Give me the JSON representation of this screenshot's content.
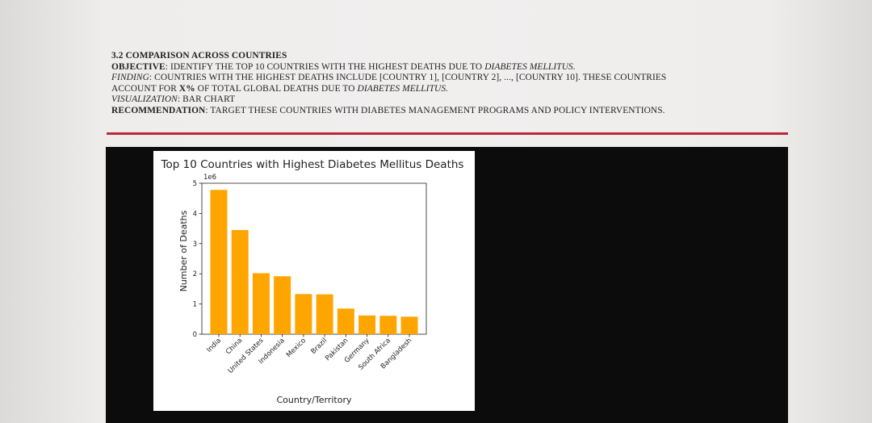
{
  "section": {
    "heading": "3.2 COMPARISON ACROSS COUNTRIES",
    "objective_label": "OBJECTIVE",
    "objective_text": ": IDENTIFY THE TOP 10 COUNTRIES WITH THE HIGHEST DEATHS DUE TO ",
    "objective_em": "DIABETES MELLITUS.",
    "finding_label": "FINDING",
    "finding_text_1": ": COUNTRIES WITH THE HIGHEST DEATHS INCLUDE [COUNTRY 1], [COUNTRY 2], ..., [COUNTRY 10]. THESE COUNTRIES",
    "finding_text_2a": "ACCOUNT FOR ",
    "finding_x": "X%",
    "finding_text_2b": " OF TOTAL GLOBAL DEATHS DUE TO ",
    "finding_em": "DIABETES MELLITUS.",
    "visualization_label": "VISUALIZATION",
    "visualization_text": ": BAR CHART",
    "recommendation_label": "RECOMMENDATION",
    "recommendation_text": ": TARGET THESE COUNTRIES WITH DIABETES MANAGEMENT PROGRAMS AND POLICY INTERVENTIONS."
  },
  "colors": {
    "bar": "#FFA500",
    "rule": "#b8293a",
    "panel": "#0c0c0c"
  },
  "chart_data": {
    "type": "bar",
    "title": "Top 10 Countries with Highest Diabetes Mellitus Deaths",
    "xlabel": "Country/Territory",
    "ylabel": "Number of Deaths",
    "scale_label": "1e6",
    "categories": [
      "India",
      "China",
      "United States",
      "Indonesia",
      "Mexico",
      "Brazil",
      "Pakistan",
      "Germany",
      "South Africa",
      "Bangladesh"
    ],
    "values": [
      4780000,
      3450000,
      2020000,
      1920000,
      1330000,
      1320000,
      850000,
      620000,
      610000,
      580000
    ],
    "ylim": [
      0,
      5000000
    ],
    "yticks": [
      0,
      1,
      2,
      3,
      4,
      5
    ],
    "grid": false,
    "legend": "none"
  }
}
